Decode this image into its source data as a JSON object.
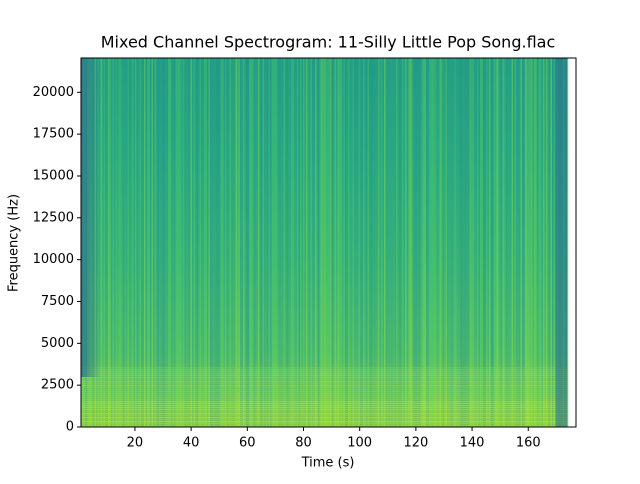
{
  "chart_data": {
    "type": "spectrogram",
    "title": "Mixed Channel Spectrogram: 11-Silly Little Pop Song.flac",
    "x_label": "Time (s)",
    "y_label": "Frequency (Hz)",
    "xlim": [
      0.8,
      177
    ],
    "ylim": [
      0,
      22050
    ],
    "xticks": [
      20,
      40,
      60,
      80,
      100,
      120,
      140,
      160
    ],
    "yticks": [
      0,
      2500,
      5000,
      7500,
      10000,
      12500,
      15000,
      17500,
      20000
    ],
    "data_extent": [
      0.8,
      174
    ],
    "colormap": [
      "#440154",
      "#3b528b",
      "#21918c",
      "#5ec962",
      "#fde725"
    ]
  }
}
